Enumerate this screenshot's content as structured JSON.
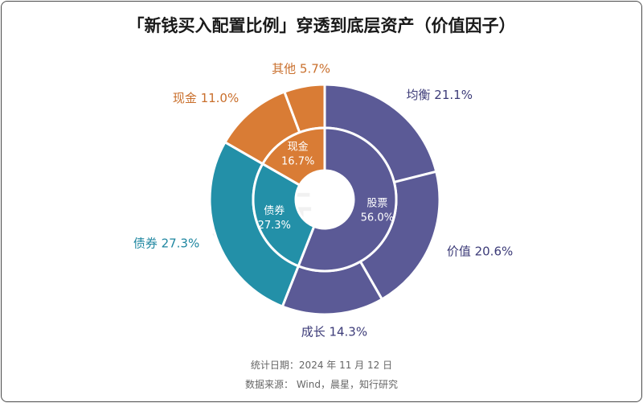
{
  "title": "「新钱买入配置比例」穿透到底层资产（价值因子）",
  "footer": {
    "date_line": "统计日期：2024 年 11 月 12 日",
    "source_line": "数据来源： Wind，晨星，知行研究"
  },
  "watermark": "知行",
  "chart_data": {
    "type": "pie",
    "title": "「新钱买入配置比例」穿透到底层资产（价值因子）",
    "inner": [
      {
        "label": "股票",
        "value": 56.0,
        "value_text": "56.0%",
        "color": "#5b5a96"
      },
      {
        "label": "债券",
        "value": 27.3,
        "value_text": "27.3%",
        "color": "#2390a8"
      },
      {
        "label": "现金",
        "value": 16.7,
        "value_text": "16.7%",
        "color": "#d97c35"
      }
    ],
    "outer": [
      {
        "label": "均衡",
        "value": 21.1,
        "value_text": "21.1%",
        "color": "#5b5a96",
        "text_color": "#3c3b78"
      },
      {
        "label": "价值",
        "value": 20.6,
        "value_text": "20.6%",
        "color": "#5b5a96",
        "text_color": "#3c3b78"
      },
      {
        "label": "成长",
        "value": 14.3,
        "value_text": "14.3%",
        "color": "#5b5a96",
        "text_color": "#3c3b78"
      },
      {
        "label": "债券",
        "value": 27.3,
        "value_text": "27.3%",
        "color": "#2390a8",
        "text_color": "#1e86a0"
      },
      {
        "label": "现金",
        "value": 11.0,
        "value_text": "11.0%",
        "color": "#d97c35",
        "text_color": "#c96f2c"
      },
      {
        "label": "其他",
        "value": 5.7,
        "value_text": "5.7%",
        "color": "#d97c35",
        "text_color": "#c96f2c"
      }
    ]
  }
}
